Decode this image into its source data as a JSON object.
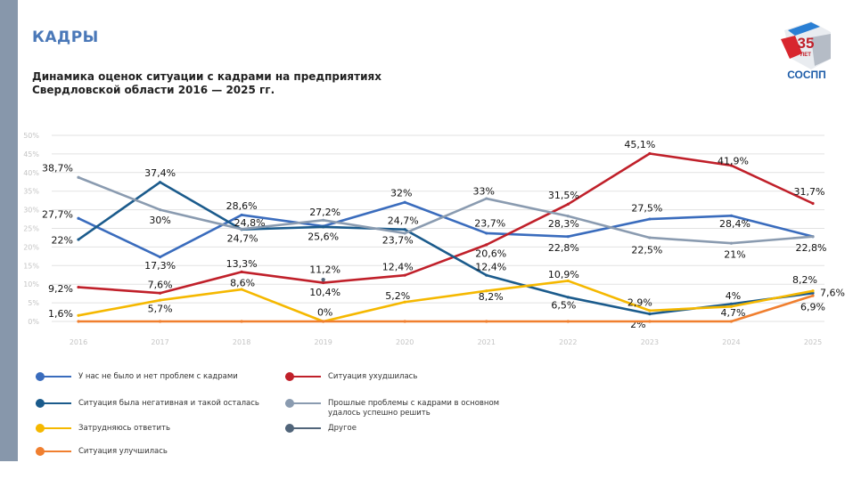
{
  "header": {
    "section": "КАДРЫ",
    "logo_text": "35 ЛЕТ СОСПП"
  },
  "chart_data": {
    "type": "line",
    "title": "Динамика оценок ситуации с кадрами на предприятиях Свердловской области 2016 — 2025 гг.",
    "categories": [
      "2016",
      "2017",
      "2018",
      "2019",
      "2020",
      "2021",
      "2022",
      "2023",
      "2024",
      "2025"
    ],
    "ylim": [
      0,
      50
    ],
    "yticks": [
      "0%",
      "5%",
      "10%",
      "15%",
      "20%",
      "25%",
      "30%",
      "35%",
      "40%",
      "45%",
      "50%"
    ],
    "grid": true,
    "legend_position": "bottom",
    "series": [
      {
        "name": "У нас не было и нет проблем с кадрами",
        "color": "#3a6cbd",
        "values": [
          27.7,
          17.3,
          28.6,
          25.6,
          32,
          23.7,
          22.8,
          27.5,
          28.4,
          22.8
        ],
        "labels": [
          "27,7%",
          "17,3%",
          "28,6%",
          "25,6%",
          "32%",
          "23,7%",
          "22,8%",
          "27,5%",
          "28,4%",
          "22,8%"
        ]
      },
      {
        "name": "Ситуация ухудшилась",
        "color": "#c0202a",
        "values": [
          9.2,
          7.6,
          13.3,
          10.4,
          12.4,
          20.6,
          31.5,
          45.1,
          41.9,
          31.7
        ],
        "labels": [
          "9,2%",
          "7,6%",
          "13,3%",
          "10,4%",
          "12,4%",
          "20,6%",
          "31,5%",
          "45,1%",
          "41,9%",
          "31,7%"
        ]
      },
      {
        "name": "Ситуация была негативная и такой осталась",
        "color": "#1b5b8c",
        "values": [
          22,
          37.4,
          24.7,
          25.4,
          24.7,
          12.4,
          6.5,
          2,
          4.7,
          7.6
        ],
        "labels": [
          "22%",
          "37,4%",
          "24,7%",
          "",
          "24,7%",
          "12,4%",
          "6,5%",
          "2%",
          "4,7%",
          "7,6%"
        ]
      },
      {
        "name": "Прошлые проблемы с кадрами в основном удалось успешно решить",
        "color": "#8a9bb0",
        "values": [
          38.7,
          30,
          24.8,
          27.2,
          23.7,
          33,
          28.3,
          22.5,
          21,
          22.8
        ],
        "labels": [
          "38,7%",
          "30%",
          "24,8%",
          "27,2%",
          "23,7%",
          "33%",
          "28,3%",
          "22,5%",
          "21%",
          ""
        ]
      },
      {
        "name": "Затрудняюсь ответить",
        "color": "#f5b800",
        "values": [
          1.6,
          5.7,
          8.6,
          0,
          5.2,
          8.2,
          10.9,
          2.9,
          4,
          8.2
        ],
        "labels": [
          "1,6%",
          "5,7%",
          "8,6%",
          "0%",
          "5,2%",
          "8,2%",
          "10,9%",
          "2,9%",
          "4%",
          "8,2%"
        ]
      },
      {
        "name": "Другое",
        "color": "#51657a",
        "values": [
          null,
          null,
          null,
          11.2,
          null,
          null,
          null,
          null,
          null,
          null
        ],
        "labels": [
          "",
          "",
          "",
          "11,2%",
          "",
          "",
          "",
          "",
          "",
          ""
        ]
      },
      {
        "name": "Ситуация улучшилась",
        "color": "#f07f2f",
        "values": [
          0,
          0,
          0,
          0,
          0,
          0,
          0,
          0,
          0,
          6.9
        ],
        "labels": [
          "",
          "",
          "",
          "",
          "",
          "",
          "",
          "",
          "",
          "6,9%"
        ]
      }
    ]
  }
}
